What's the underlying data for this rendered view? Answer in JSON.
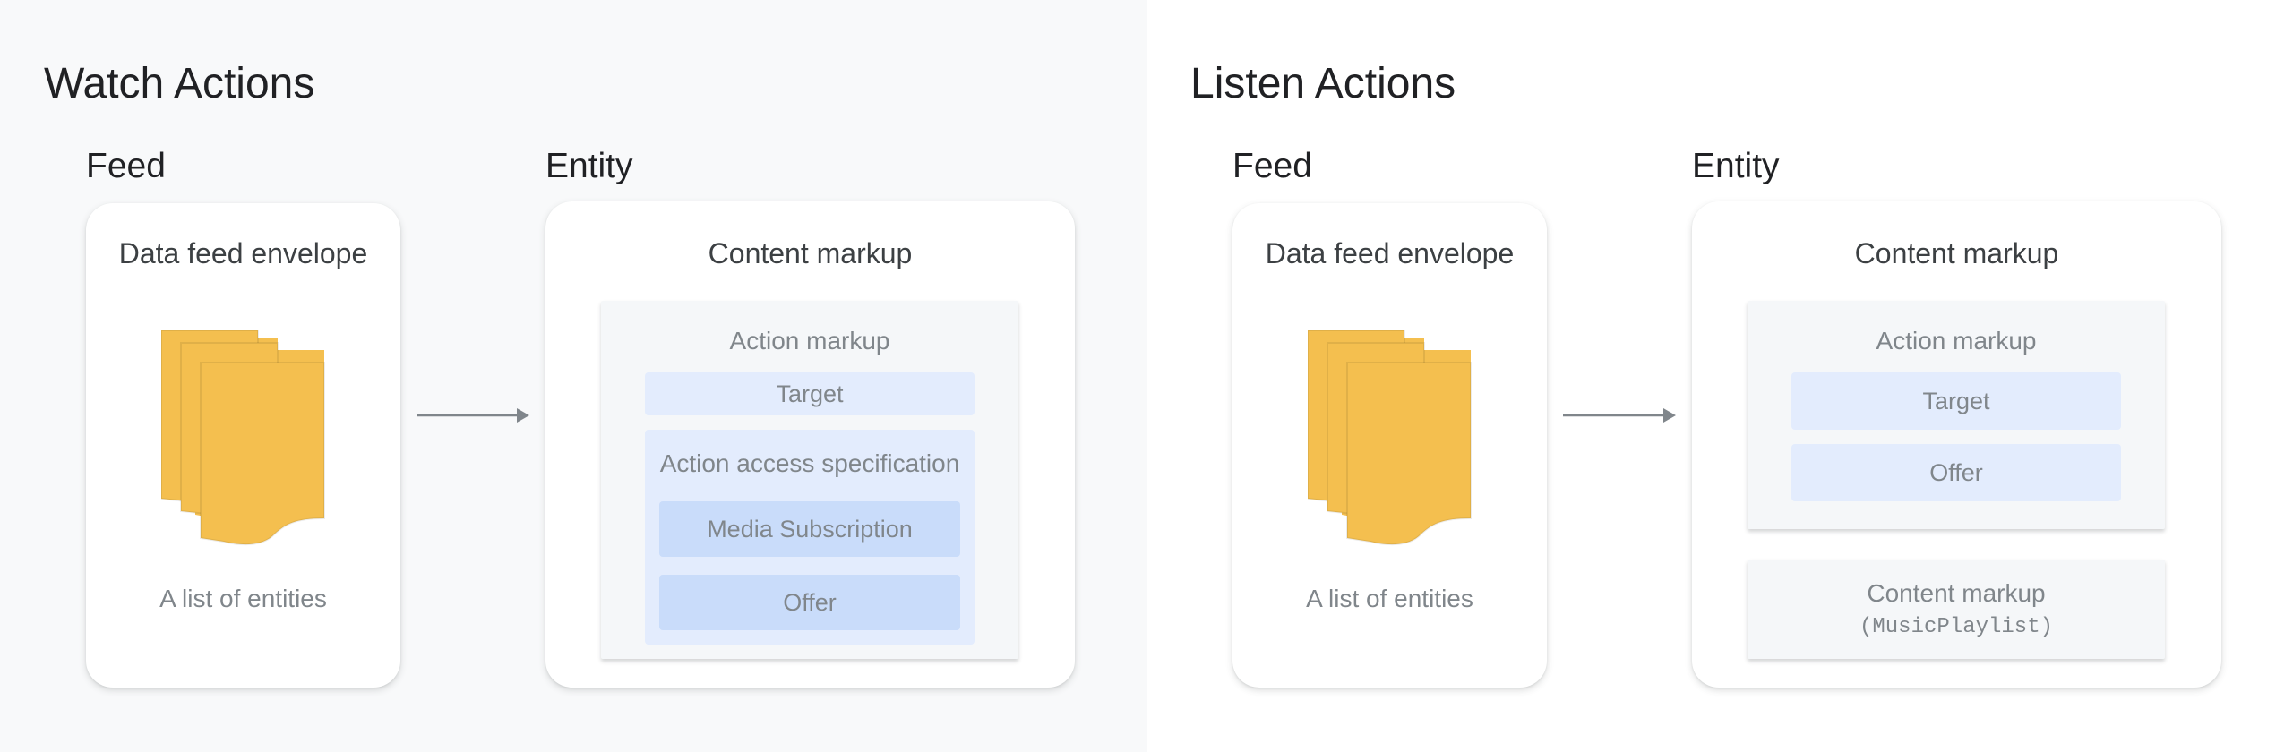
{
  "watch": {
    "title": "Watch Actions",
    "feed_label": "Feed",
    "entity_label": "Entity",
    "feed_card": {
      "title": "Data feed envelope",
      "caption": "A list of entities",
      "icon": "document-stack-icon"
    },
    "entity_card": {
      "title": "Content markup",
      "action_markup": {
        "title": "Action markup",
        "target": "Target",
        "access_spec": {
          "title": "Action access specification",
          "items": [
            "Media Subscription",
            "Offer"
          ]
        }
      }
    }
  },
  "listen": {
    "title": "Listen Actions",
    "feed_label": "Feed",
    "entity_label": "Entity",
    "feed_card": {
      "title": "Data feed envelope",
      "caption": "A list of entities",
      "icon": "document-stack-icon"
    },
    "entity_card": {
      "title": "Content markup",
      "action_markup": {
        "title": "Action markup",
        "items": [
          "Target",
          "Offer"
        ]
      },
      "content_markup": {
        "title": "Content markup",
        "type": "(MusicPlaylist)"
      }
    }
  },
  "colors": {
    "doc": "#f4bf4f",
    "arrow": "#80868b",
    "light_box": "#e3ecfd",
    "dark_box": "#c9dcfa"
  }
}
